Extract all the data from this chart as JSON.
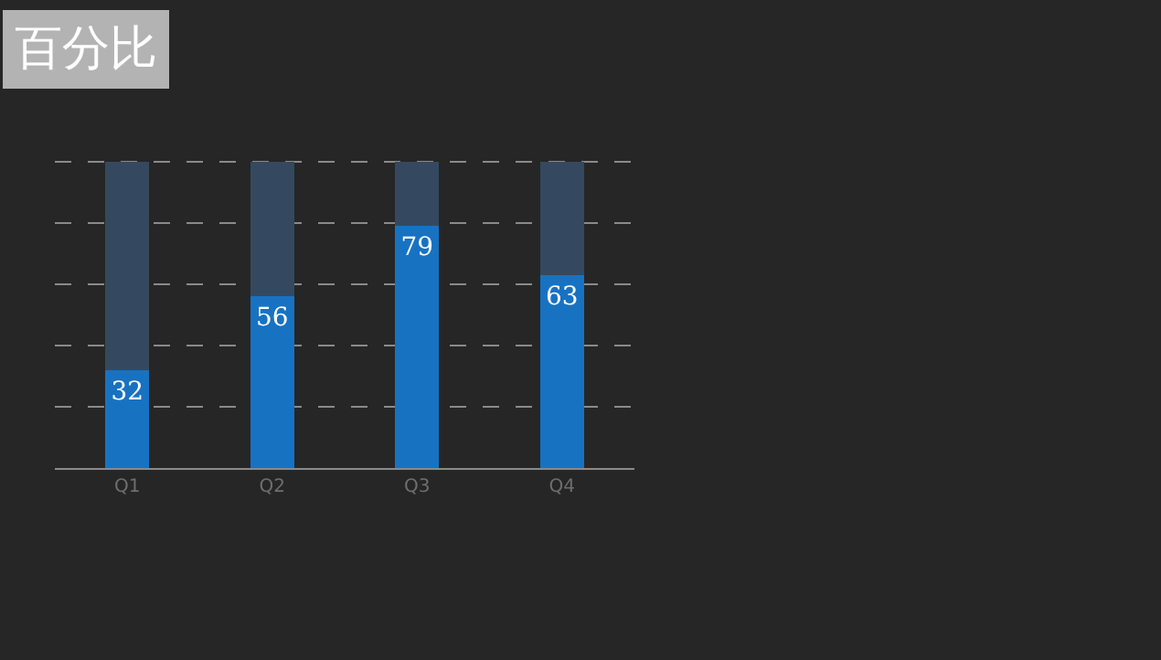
{
  "chart_data": {
    "type": "bar",
    "title": "百分比",
    "categories": [
      "Q1",
      "Q2",
      "Q3",
      "Q4"
    ],
    "stacked": true,
    "series": [
      {
        "color": "#1872c2",
        "values": [
          32,
          56,
          79,
          63
        ],
        "value_labels": [
          "32",
          "56",
          "79",
          "63"
        ]
      },
      {
        "color": "#34495f",
        "values": [
          68,
          44,
          21,
          37
        ]
      }
    ],
    "ylim": [
      0,
      102
    ],
    "yticks": [
      {
        "value": 20,
        "label": null
      },
      {
        "value": 40,
        "label": null
      },
      {
        "value": 60,
        "label": null
      },
      {
        "value": 80,
        "label": null
      },
      {
        "value": 100,
        "label": null
      }
    ],
    "tick_labels": "x",
    "grid": "y"
  }
}
